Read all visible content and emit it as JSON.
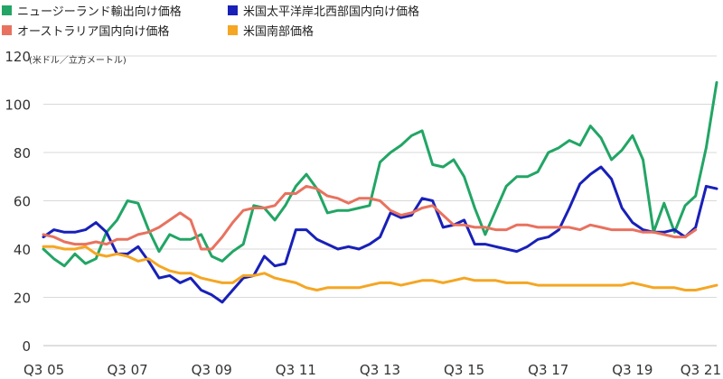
{
  "chart_data": {
    "type": "line",
    "unit": "(米ドル／立方メートル)",
    "ylim": [
      0,
      120
    ],
    "yticks": [
      0,
      20,
      40,
      60,
      80,
      100,
      120
    ],
    "xlim": [
      0,
      64
    ],
    "xticks": [
      {
        "label": "Q3 05",
        "x": 0
      },
      {
        "label": "Q3 07",
        "x": 8
      },
      {
        "label": "Q3 09",
        "x": 16
      },
      {
        "label": "Q3 11",
        "x": 24
      },
      {
        "label": "Q3 13",
        "x": 32
      },
      {
        "label": "Q3 15",
        "x": 40
      },
      {
        "label": "Q3 17",
        "x": 48
      },
      {
        "label": "Q3 19",
        "x": 56
      },
      {
        "label": "Q3 21",
        "x": 64
      }
    ],
    "grid": true,
    "legend": "top",
    "series": [
      {
        "name": "ニュージーランド輸出向け価格",
        "color": "#22A565",
        "x": [
          0,
          1,
          2,
          3,
          4,
          5,
          6,
          7,
          8,
          9,
          10,
          11,
          12,
          13,
          14,
          15,
          16,
          17,
          18,
          19,
          20,
          21,
          22,
          23,
          24,
          25,
          26,
          27,
          28,
          29,
          30,
          31,
          32,
          33,
          34,
          35,
          36,
          37,
          38,
          39,
          40,
          41,
          42,
          43,
          44,
          45,
          46,
          47,
          48,
          49,
          50,
          51,
          52,
          53,
          54,
          55,
          56,
          57,
          58,
          59,
          60,
          61,
          62,
          63,
          64
        ],
        "values": [
          40,
          36,
          33,
          38,
          34,
          36,
          47,
          52,
          60,
          59,
          48,
          39,
          46,
          44,
          44,
          46,
          37,
          35,
          39,
          42,
          58,
          57,
          52,
          58,
          66,
          71,
          65,
          55,
          56,
          56,
          57,
          58,
          76,
          80,
          83,
          87,
          89,
          75,
          74,
          77,
          70,
          57,
          46,
          56,
          66,
          70,
          70,
          72,
          80,
          82,
          85,
          83,
          91,
          86,
          77,
          81,
          87,
          77,
          47,
          59,
          47,
          58,
          62,
          82,
          109
        ]
      },
      {
        "name": "米国太平洋岸北西部国内向け価格",
        "color": "#1820B8",
        "x": [
          0,
          1,
          2,
          3,
          4,
          5,
          6,
          7,
          8,
          9,
          10,
          11,
          12,
          13,
          14,
          15,
          16,
          17,
          18,
          19,
          20,
          21,
          22,
          23,
          24,
          25,
          26,
          27,
          28,
          29,
          30,
          31,
          32,
          33,
          34,
          35,
          36,
          37,
          38,
          39,
          40,
          41,
          42,
          43,
          44,
          45,
          46,
          47,
          48,
          49,
          50,
          51,
          52,
          53,
          54,
          55,
          56,
          57,
          58,
          59,
          60,
          61,
          62,
          63,
          64
        ],
        "values": [
          45,
          48,
          47,
          47,
          48,
          51,
          47,
          38,
          38,
          41,
          35,
          28,
          29,
          26,
          28,
          23,
          21,
          18,
          23,
          28,
          29,
          37,
          33,
          34,
          48,
          48,
          44,
          42,
          40,
          41,
          40,
          42,
          45,
          55,
          53,
          54,
          61,
          60,
          49,
          50,
          52,
          42,
          42,
          41,
          40,
          39,
          41,
          44,
          45,
          48,
          57,
          67,
          71,
          74,
          69,
          57,
          51,
          48,
          47,
          47,
          48,
          45,
          49,
          66,
          65
        ]
      },
      {
        "name": "オーストラリア国内向け価格",
        "color": "#E8725F",
        "x": [
          0,
          1,
          2,
          3,
          4,
          5,
          6,
          7,
          8,
          9,
          10,
          11,
          12,
          13,
          14,
          15,
          16,
          17,
          18,
          19,
          20,
          21,
          22,
          23,
          24,
          25,
          26,
          27,
          28,
          29,
          30,
          31,
          32,
          33,
          34,
          35,
          36,
          37,
          38,
          39,
          40,
          41,
          42,
          43,
          44,
          45,
          46,
          47,
          48,
          49,
          50,
          51,
          52,
          53,
          54,
          55,
          56,
          57,
          58,
          59,
          60,
          61,
          62
        ],
        "values": [
          46,
          45,
          43,
          42,
          42,
          43,
          42,
          44,
          44,
          46,
          47,
          49,
          52,
          55,
          52,
          40,
          40,
          45,
          51,
          56,
          57,
          57,
          58,
          63,
          63,
          66,
          65,
          62,
          61,
          59,
          61,
          61,
          60,
          56,
          54,
          55,
          57,
          58,
          54,
          50,
          50,
          49,
          49,
          48,
          48,
          50,
          50,
          49,
          49,
          49,
          49,
          48,
          50,
          49,
          48,
          48,
          48,
          47,
          47,
          46,
          45,
          45,
          48
        ]
      },
      {
        "name": "米国南部価格",
        "color": "#F5A623",
        "x": [
          0,
          1,
          2,
          3,
          4,
          5,
          6,
          7,
          8,
          9,
          10,
          11,
          12,
          13,
          14,
          15,
          16,
          17,
          18,
          19,
          20,
          21,
          22,
          23,
          24,
          25,
          26,
          27,
          28,
          29,
          30,
          31,
          32,
          33,
          34,
          35,
          36,
          37,
          38,
          39,
          40,
          41,
          42,
          43,
          44,
          45,
          46,
          47,
          48,
          49,
          50,
          51,
          52,
          53,
          54,
          55,
          56,
          57,
          58,
          59,
          60,
          61,
          62,
          63,
          64
        ],
        "values": [
          41,
          41,
          40,
          40,
          41,
          38,
          37,
          38,
          37,
          35,
          36,
          33,
          31,
          30,
          30,
          28,
          27,
          26,
          26,
          29,
          29,
          30,
          28,
          27,
          26,
          24,
          23,
          24,
          24,
          24,
          24,
          25,
          26,
          26,
          25,
          26,
          27,
          27,
          26,
          27,
          28,
          27,
          27,
          27,
          26,
          26,
          26,
          25,
          25,
          25,
          25,
          25,
          25,
          25,
          25,
          25,
          26,
          25,
          24,
          24,
          24,
          23,
          23,
          24,
          25
        ]
      }
    ]
  },
  "legend_items": [
    "ニュージーランド輸出向け価格",
    "米国太平洋岸北西部国内向け価格",
    "オーストラリア国内向け価格",
    "米国南部価格"
  ]
}
